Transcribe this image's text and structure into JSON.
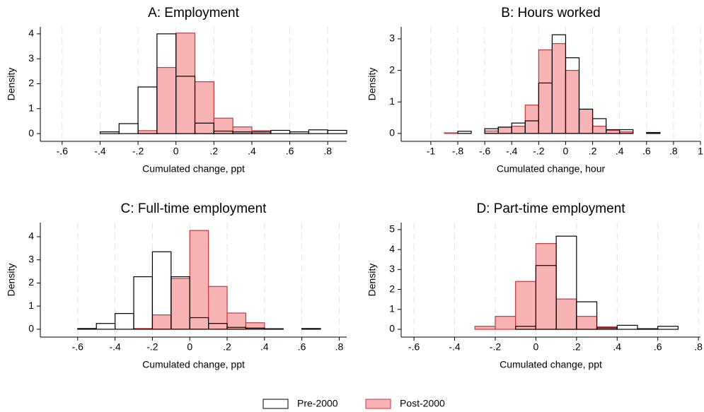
{
  "chart_data": [
    {
      "type": "histogram",
      "title": "A: Employment",
      "x_label": "Cumulated change, ppt",
      "y_label": "Density",
      "bins": [
        -0.4,
        -0.3,
        -0.2,
        -0.1,
        0,
        0.1,
        0.2,
        0.3,
        0.4,
        0.5,
        0.6,
        0.7,
        0.8,
        0.9
      ],
      "series": [
        {
          "name": "Pre-2000",
          "color": "#000000",
          "values": [
            0.07,
            0.4,
            1.87,
            4.0,
            2.3,
            0.42,
            0.1,
            0.07,
            0.07,
            0.13,
            0.07,
            0.15,
            0.13
          ]
        },
        {
          "name": "Post-2000",
          "color": "#f8b4b4",
          "values": [
            0,
            0,
            0.12,
            2.65,
            4.03,
            2.08,
            0.62,
            0.27,
            0.12,
            0,
            0,
            0,
            0
          ]
        }
      ],
      "xlim": [
        -0.715,
        0.9
      ],
      "ylim": [
        -0.31,
        4.28
      ],
      "xticks": [
        {
          "value": -0.6,
          "label": "-.6"
        },
        {
          "value": -0.4,
          "label": "-.4"
        },
        {
          "value": -0.2,
          "label": "-.2"
        },
        0,
        {
          "value": 0.2,
          "label": ".2"
        },
        {
          "value": 0.4,
          "label": ".4"
        },
        {
          "value": 0.6,
          "label": ".6"
        },
        {
          "value": 0.8,
          "label": ".8"
        }
      ],
      "yticks": [
        0,
        1,
        2,
        3,
        4
      ],
      "grid": true
    },
    {
      "type": "histogram",
      "title": "B: Hours worked",
      "x_label": "Cumulated change, hour",
      "y_label": "Density",
      "bins": [
        -0.9,
        -0.8,
        -0.7,
        -0.6,
        -0.5,
        -0.4,
        -0.3,
        -0.2,
        -0.1,
        0,
        0.1,
        0.2,
        0.3,
        0.4,
        0.5,
        0.6,
        0.7
      ],
      "series": [
        {
          "color": "#000000",
          "values": [
            0,
            0.07,
            0,
            0.15,
            0.2,
            0.33,
            0.4,
            1.6,
            3.13,
            2.4,
            0.77,
            0.47,
            0.12,
            0.12,
            0,
            0.03
          ]
        },
        {
          "color": "#f8b4b4",
          "values": [
            0.02,
            0,
            0,
            0.08,
            0.2,
            0.23,
            0.9,
            2.65,
            2.85,
            2.0,
            0.77,
            0.23,
            0.1,
            0.05,
            0,
            0.02
          ]
        }
      ],
      "xlim": [
        -1.22,
        1.0
      ],
      "ylim": [
        -0.25,
        3.38
      ],
      "xticks": [
        -1,
        {
          "value": -0.8,
          "label": "-.8"
        },
        {
          "value": -0.6,
          "label": "-.6"
        },
        {
          "value": -0.4,
          "label": "-.4"
        },
        {
          "value": -0.2,
          "label": "-.2"
        },
        0,
        {
          "value": 0.2,
          "label": ".2"
        },
        {
          "value": 0.4,
          "label": ".4"
        },
        {
          "value": 0.6,
          "label": ".6"
        },
        {
          "value": 0.8,
          "label": ".8"
        },
        1
      ],
      "yticks": [
        0,
        1,
        2,
        3
      ],
      "grid": true
    },
    {
      "type": "histogram",
      "title": "C: Full-time employment",
      "x_label": "Cumulated change, ppt",
      "y_label": "Density",
      "bins": [
        -0.6,
        -0.5,
        -0.4,
        -0.3,
        -0.2,
        -0.1,
        0,
        0.1,
        0.2,
        0.3,
        0.4,
        0.5,
        0.6,
        0.7
      ],
      "series": [
        {
          "color": "#000000",
          "values": [
            0.03,
            0.25,
            0.68,
            2.27,
            3.35,
            2.27,
            0.5,
            0.25,
            0.08,
            0.05,
            0.02,
            0,
            0.03
          ]
        },
        {
          "color": "#f8b4b4",
          "values": [
            0,
            0,
            0,
            0.03,
            0.62,
            2.2,
            4.27,
            1.85,
            0.7,
            0.28,
            0.02,
            0,
            0
          ]
        }
      ],
      "xlim": [
        -0.8,
        0.84
      ],
      "ylim": [
        -0.34,
        4.61
      ],
      "xticks": [
        {
          "value": -0.6,
          "label": "-.6"
        },
        {
          "value": -0.4,
          "label": "-.4"
        },
        {
          "value": -0.2,
          "label": "-.2"
        },
        0,
        {
          "value": 0.2,
          "label": ".2"
        },
        {
          "value": 0.4,
          "label": ".4"
        },
        {
          "value": 0.6,
          "label": ".6"
        },
        {
          "value": 0.8,
          "label": ".8"
        }
      ],
      "yticks": [
        0,
        1,
        2,
        3,
        4
      ],
      "grid": true
    },
    {
      "type": "histogram",
      "title": "D: Part-time employment",
      "x_label": "Cumulated change, ppt",
      "y_label": "Density",
      "bins": [
        -0.3,
        -0.2,
        -0.1,
        0,
        0.1,
        0.2,
        0.3,
        0.4,
        0.5,
        0.6,
        0.7
      ],
      "series": [
        {
          "color": "#000000",
          "values": [
            0,
            0,
            0.15,
            3.2,
            4.67,
            1.38,
            0.07,
            0.2,
            0.03,
            0.15
          ]
        },
        {
          "color": "#f8b4b4",
          "values": [
            0.15,
            0.65,
            2.4,
            4.3,
            1.52,
            0.65,
            0.12,
            0,
            0,
            0
          ]
        }
      ],
      "xlim": [
        -0.663,
        0.81
      ],
      "ylim": [
        -0.39,
        5.35
      ],
      "xticks": [
        {
          "value": -0.6,
          "label": "-.6"
        },
        {
          "value": -0.4,
          "label": "-.4"
        },
        {
          "value": -0.2,
          "label": "-.2"
        },
        0,
        {
          "value": 0.2,
          "label": ".2"
        },
        {
          "value": 0.4,
          "label": ".4"
        },
        {
          "value": 0.6,
          "label": ".6"
        },
        {
          "value": 0.8,
          "label": ".8"
        }
      ],
      "yticks": [
        0,
        1,
        2,
        3,
        4,
        5
      ],
      "grid": true
    }
  ]
}
